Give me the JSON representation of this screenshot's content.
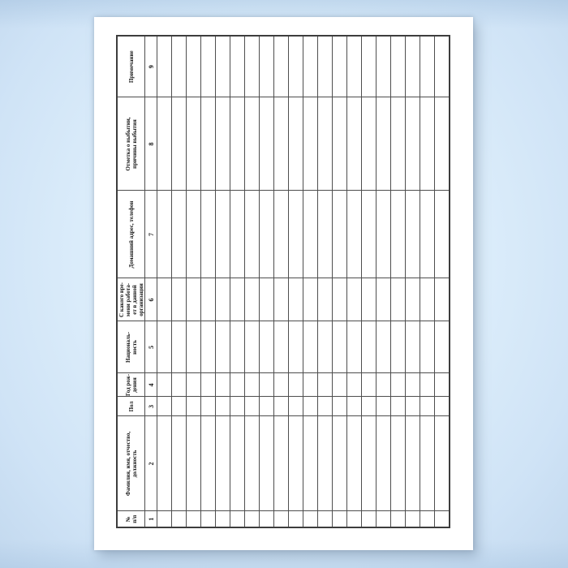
{
  "document": {
    "language": "ru",
    "page_background": "#ffffff",
    "backdrop_color": "#d7e9fa",
    "border_color": "#4e4e4e",
    "text_color": "#141414",
    "table_rotation_deg": -90
  },
  "table": {
    "columns": [
      {
        "number": "1",
        "header_lines": [
          "№",
          "п/п"
        ]
      },
      {
        "number": "2",
        "header_lines": [
          "Фамилия, имя, отчество,",
          "должность"
        ]
      },
      {
        "number": "3",
        "header_lines": [
          "Пол"
        ]
      },
      {
        "number": "4",
        "header_lines": [
          "Год рож-",
          "дения"
        ]
      },
      {
        "number": "5",
        "header_lines": [
          "Националь-",
          "ность"
        ]
      },
      {
        "number": "6",
        "header_lines": [
          "С какого вре-",
          "мени работа-",
          "ет в данной",
          "организации"
        ]
      },
      {
        "number": "7",
        "header_lines": [
          "Домашний адрес, телефон"
        ]
      },
      {
        "number": "8",
        "header_lines": [
          "Отметка о выбытии,",
          "причины выбытия"
        ]
      },
      {
        "number": "9",
        "header_lines": [
          "Примечание"
        ]
      }
    ],
    "empty_row_count": 20,
    "data_cell_text": ""
  }
}
